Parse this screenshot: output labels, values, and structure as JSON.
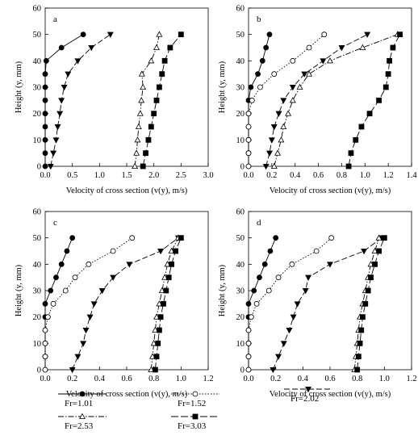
{
  "series_styles": [
    {
      "key": "fr101",
      "marker": "circle",
      "fill": "#000000",
      "dash": ""
    },
    {
      "key": "fr152",
      "marker": "circle",
      "fill": "#ffffff",
      "dash": "1.5,2"
    },
    {
      "key": "fr202",
      "marker": "tri-down",
      "fill": "#000000",
      "dash": "7,3"
    },
    {
      "key": "fr253",
      "marker": "tri-up",
      "fill": "#ffffff",
      "dash": "7,2,1.5,2"
    },
    {
      "key": "fr303",
      "marker": "square",
      "fill": "#000000",
      "dash": "9,3"
    }
  ],
  "legend": [
    {
      "key": "fr101",
      "label": "Fr=1.01"
    },
    {
      "key": "fr152",
      "label": "Fr=1.52"
    },
    {
      "key": "fr202",
      "label": "Fr=2.02"
    },
    {
      "key": "fr253",
      "label": "Fr=2.53"
    },
    {
      "key": "fr303",
      "label": "Fr=3.03"
    }
  ],
  "chart_data": [
    {
      "type": "line",
      "panel_label": "a",
      "xlabel": "Velocity of cross section (v(y), m/s)",
      "ylabel": "Height (y, mm)",
      "xlim": [
        0,
        3.0
      ],
      "xticks": [
        0.0,
        0.5,
        1.0,
        1.5,
        2.0,
        2.5,
        3.0
      ],
      "xtick_decimals": 1,
      "ylim": [
        0,
        60
      ],
      "yticks": [
        0,
        10,
        20,
        30,
        40,
        50,
        60
      ],
      "legend_position": "bottom",
      "series": [
        {
          "key": "fr101",
          "name": "Fr=1.01",
          "x": [
            0.0,
            0.0,
            0.0,
            0.0,
            0.0,
            0.0,
            0.0,
            0.0,
            0.02,
            0.3,
            0.7
          ],
          "y": [
            0,
            5,
            10,
            15,
            20,
            25,
            30,
            35,
            40,
            45,
            50
          ]
        },
        {
          "key": "fr152",
          "name": "Fr=1.52",
          "x": [],
          "y": []
        },
        {
          "key": "fr202",
          "name": "Fr=2.02",
          "x": [
            0.1,
            0.15,
            0.2,
            0.23,
            0.27,
            0.3,
            0.35,
            0.42,
            0.6,
            0.85,
            1.2
          ],
          "y": [
            0,
            5,
            10,
            15,
            20,
            25,
            30,
            35,
            40,
            45,
            50
          ]
        },
        {
          "key": "fr253",
          "name": "Fr=2.53",
          "x": [
            1.65,
            1.68,
            1.7,
            1.72,
            1.75,
            1.77,
            1.8,
            1.78,
            1.95,
            2.05,
            2.1
          ],
          "y": [
            0,
            5,
            10,
            15,
            20,
            25,
            30,
            35,
            40,
            45,
            50
          ]
        },
        {
          "key": "fr303",
          "name": "Fr=3.03",
          "x": [
            1.8,
            1.85,
            1.9,
            1.95,
            2.0,
            2.05,
            2.1,
            2.15,
            2.2,
            2.3,
            2.5
          ],
          "y": [
            0,
            5,
            10,
            15,
            20,
            25,
            30,
            35,
            40,
            45,
            50
          ]
        }
      ]
    },
    {
      "type": "line",
      "panel_label": "b",
      "xlabel": "Velocity of cross section (v(y), m/s)",
      "ylabel": "Height (y, mm)",
      "xlim": [
        0,
        1.4
      ],
      "xticks": [
        0.0,
        0.2,
        0.4,
        0.6,
        0.8,
        1.0,
        1.2,
        1.4
      ],
      "xtick_decimals": 1,
      "ylim": [
        0,
        60
      ],
      "yticks": [
        0,
        10,
        20,
        30,
        40,
        50,
        60
      ],
      "legend_position": "bottom",
      "series": [
        {
          "key": "fr101",
          "name": "Fr=1.01",
          "x": [
            0.0,
            0.0,
            0.0,
            0.0,
            0.0,
            0.0,
            0.02,
            0.08,
            0.12,
            0.15,
            0.18
          ],
          "y": [
            0,
            5,
            10,
            15,
            20,
            25,
            30,
            35,
            40,
            45,
            50
          ]
        },
        {
          "key": "fr152",
          "name": "Fr=1.52",
          "x": [
            0.0,
            0.0,
            0.0,
            0.0,
            0.0,
            0.03,
            0.1,
            0.22,
            0.38,
            0.52,
            0.65
          ],
          "y": [
            0,
            5,
            10,
            15,
            20,
            25,
            30,
            35,
            40,
            45,
            50
          ]
        },
        {
          "key": "fr202",
          "name": "Fr=2.02",
          "x": [
            0.15,
            0.18,
            0.2,
            0.22,
            0.26,
            0.3,
            0.38,
            0.48,
            0.64,
            0.8,
            1.02
          ],
          "y": [
            0,
            5,
            10,
            15,
            20,
            25,
            30,
            35,
            40,
            45,
            50
          ]
        },
        {
          "key": "fr253",
          "name": "Fr=2.53",
          "x": [
            0.22,
            0.25,
            0.28,
            0.3,
            0.34,
            0.38,
            0.44,
            0.52,
            0.7,
            0.98,
            1.28
          ],
          "y": [
            0,
            5,
            10,
            15,
            20,
            25,
            30,
            35,
            40,
            45,
            50
          ]
        },
        {
          "key": "fr303",
          "name": "Fr=3.03",
          "x": [
            0.86,
            0.88,
            0.92,
            0.97,
            1.04,
            1.12,
            1.18,
            1.2,
            1.21,
            1.24,
            1.3
          ],
          "y": [
            0,
            5,
            10,
            15,
            20,
            25,
            30,
            35,
            40,
            45,
            50
          ]
        }
      ]
    },
    {
      "type": "line",
      "panel_label": "c",
      "xlabel": "Velocity of cross section (v(y), m/s)",
      "ylabel": "Height (y, mm)",
      "xlim": [
        0,
        1.2
      ],
      "xticks": [
        0.0,
        0.2,
        0.4,
        0.6,
        0.8,
        1.0,
        1.2
      ],
      "xtick_decimals": 1,
      "ylim": [
        0,
        60
      ],
      "yticks": [
        0,
        10,
        20,
        30,
        40,
        50,
        60
      ],
      "legend_position": "bottom",
      "series": [
        {
          "key": "fr101",
          "name": "Fr=1.01",
          "x": [
            0.0,
            0.0,
            0.0,
            0.0,
            0.0,
            0.0,
            0.04,
            0.08,
            0.12,
            0.16,
            0.2
          ],
          "y": [
            0,
            5,
            10,
            15,
            20,
            25,
            30,
            35,
            40,
            45,
            50
          ]
        },
        {
          "key": "fr152",
          "name": "Fr=1.52",
          "x": [
            0.0,
            0.0,
            0.0,
            0.0,
            0.02,
            0.06,
            0.15,
            0.22,
            0.32,
            0.5,
            0.64
          ],
          "y": [
            0,
            5,
            10,
            15,
            20,
            25,
            30,
            35,
            40,
            45,
            50
          ]
        },
        {
          "key": "fr202",
          "name": "Fr=2.02",
          "x": [
            0.2,
            0.24,
            0.28,
            0.3,
            0.33,
            0.36,
            0.42,
            0.5,
            0.62,
            0.85,
            0.98
          ],
          "y": [
            0,
            5,
            10,
            15,
            20,
            25,
            30,
            35,
            40,
            45,
            50
          ]
        },
        {
          "key": "fr253",
          "name": "Fr=2.53",
          "x": [
            0.78,
            0.79,
            0.8,
            0.81,
            0.82,
            0.84,
            0.86,
            0.88,
            0.9,
            0.93,
            0.98
          ],
          "y": [
            0,
            5,
            10,
            15,
            20,
            25,
            30,
            35,
            40,
            45,
            50
          ]
        },
        {
          "key": "fr303",
          "name": "Fr=3.03",
          "x": [
            0.81,
            0.82,
            0.83,
            0.84,
            0.85,
            0.87,
            0.89,
            0.91,
            0.93,
            0.96,
            1.0
          ],
          "y": [
            0,
            5,
            10,
            15,
            20,
            25,
            30,
            35,
            40,
            45,
            50
          ]
        }
      ]
    },
    {
      "type": "line",
      "panel_label": "d",
      "xlabel": "Velocity of cross section (v(y), m/s)",
      "ylabel": "Height (y, mm)",
      "xlim": [
        0,
        1.2
      ],
      "xticks": [
        0.0,
        0.2,
        0.4,
        0.6,
        0.8,
        1.0,
        1.2
      ],
      "xtick_decimals": 1,
      "ylim": [
        0,
        60
      ],
      "yticks": [
        0,
        10,
        20,
        30,
        40,
        50,
        60
      ],
      "legend_position": "bottom",
      "series": [
        {
          "key": "fr101",
          "name": "Fr=1.01",
          "x": [
            0.0,
            0.0,
            0.0,
            0.0,
            0.0,
            0.0,
            0.04,
            0.08,
            0.12,
            0.16,
            0.2
          ],
          "y": [
            0,
            5,
            10,
            15,
            20,
            25,
            30,
            35,
            40,
            45,
            50
          ]
        },
        {
          "key": "fr152",
          "name": "Fr=1.52",
          "x": [
            0.0,
            0.0,
            0.0,
            0.0,
            0.02,
            0.06,
            0.15,
            0.22,
            0.32,
            0.5,
            0.61
          ],
          "y": [
            0,
            5,
            10,
            15,
            20,
            25,
            30,
            35,
            40,
            45,
            50
          ]
        },
        {
          "key": "fr202",
          "name": "Fr=2.02",
          "x": [
            0.18,
            0.22,
            0.26,
            0.3,
            0.33,
            0.36,
            0.42,
            0.44,
            0.6,
            0.85,
            0.98
          ],
          "y": [
            0,
            5,
            10,
            15,
            20,
            25,
            30,
            35,
            40,
            45,
            50
          ]
        },
        {
          "key": "fr253",
          "name": "Fr=2.53",
          "x": [
            0.78,
            0.79,
            0.8,
            0.81,
            0.82,
            0.84,
            0.86,
            0.88,
            0.9,
            0.93,
            0.96
          ],
          "y": [
            0,
            5,
            10,
            15,
            20,
            25,
            30,
            35,
            40,
            45,
            50
          ]
        },
        {
          "key": "fr303",
          "name": "Fr=3.03",
          "x": [
            0.8,
            0.81,
            0.82,
            0.83,
            0.84,
            0.86,
            0.88,
            0.9,
            0.93,
            0.96,
            1.0
          ],
          "y": [
            0,
            5,
            10,
            15,
            20,
            25,
            30,
            35,
            40,
            45,
            50
          ]
        }
      ]
    }
  ]
}
